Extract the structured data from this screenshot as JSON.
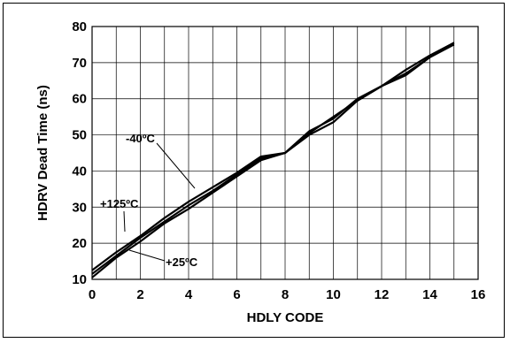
{
  "chart_data": {
    "type": "line",
    "title": "",
    "xlabel": "HDLY CODE",
    "ylabel": "HDRV Dead Time (ns)",
    "xlim": [
      0,
      16
    ],
    "ylim": [
      10,
      80
    ],
    "xticks": [
      "0",
      "2",
      "4",
      "6",
      "8",
      "10",
      "12",
      "14",
      "16"
    ],
    "yticks": [
      "10",
      "20",
      "30",
      "40",
      "50",
      "60",
      "70",
      "80"
    ],
    "grid": true,
    "x": [
      0,
      1,
      2,
      3,
      4,
      5,
      6,
      7,
      8,
      9,
      10,
      11,
      12,
      13,
      14,
      15
    ],
    "series": [
      {
        "name": "-40ºC",
        "values": [
          10.5,
          16,
          20.5,
          25.5,
          29.5,
          34,
          38.5,
          43,
          45,
          50.5,
          55,
          59.5,
          63.5,
          68,
          72,
          75.5
        ]
      },
      {
        "name": "+125ºC",
        "values": [
          12.5,
          17.5,
          22,
          27,
          31.5,
          35.5,
          39.5,
          44,
          45,
          50,
          53.5,
          59.5,
          63.5,
          66.5,
          71.5,
          75
        ]
      },
      {
        "name": "+25ºC",
        "values": [
          11.5,
          16.5,
          21.5,
          26,
          30.5,
          34.5,
          39,
          43.5,
          45,
          51,
          54.5,
          60,
          63.5,
          67,
          71.5,
          75.5
        ]
      }
    ],
    "annotations": [
      "-40ºC",
      "+125ºC",
      "+25ºC"
    ]
  }
}
